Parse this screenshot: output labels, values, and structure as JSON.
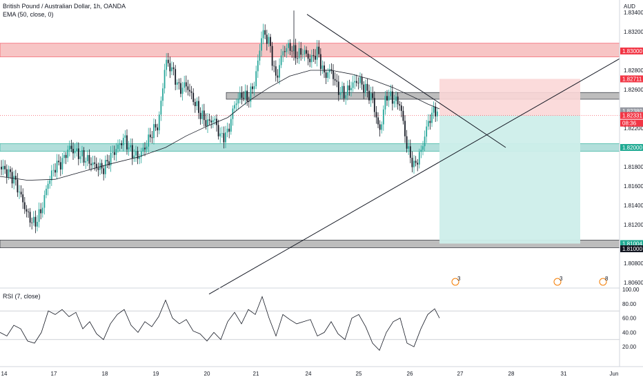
{
  "header": {
    "title": "British Pound / Australian Dollar, 1h, OANDA",
    "ema_label": "EMA (50, close, 0)",
    "rsi_label": "RSI (7, close)"
  },
  "axis": {
    "currency": "AUD",
    "price_ticks": [
      "1.83400",
      "1.83200",
      "1.82800",
      "1.82600",
      "1.82200",
      "1.81800",
      "1.81600",
      "1.81400",
      "1.81200",
      "1.80800",
      "1.80600"
    ],
    "rsi_ticks": [
      "100.00",
      "80.00",
      "60.00",
      "40.00",
      "20.00"
    ],
    "date_ticks": [
      "14",
      "17",
      "18",
      "19",
      "20",
      "21",
      "24",
      "25",
      "26",
      "27",
      "28",
      "31",
      "Jun"
    ]
  },
  "price_badges": [
    {
      "text": "1.83000",
      "color": "#f23645",
      "text_color": "#ffffff"
    },
    {
      "text": "1.82711",
      "color": "#f23645",
      "text_color": "#ffffff"
    },
    {
      "text": "1.82380",
      "color": "#9598a1",
      "text_color": "#ffffff"
    },
    {
      "text": "1.82331",
      "color": "#f23645",
      "text_color": "#ffffff"
    },
    {
      "text": "08:36",
      "color": "#f23645",
      "text_color": "#ffffff"
    },
    {
      "text": "1.82000",
      "color": "#22ab94",
      "text_color": "#ffffff"
    },
    {
      "text": "1.81004",
      "color": "#22ab94",
      "text_color": "#ffffff"
    },
    {
      "text": "1.81000",
      "color": "#131722",
      "text_color": "#ffffff"
    }
  ],
  "event_markers": [
    {
      "label": "3"
    },
    {
      "label": "3"
    },
    {
      "label": "8"
    }
  ],
  "colors": {
    "up_candle": "#26a69a",
    "down_candle": "#131722",
    "resistance_zone": "#f7c5c5",
    "support_zone": "#b2dfdb",
    "grey_zone": "#bdbdbd",
    "stop_zone": "#fbd7d7",
    "target_zone": "#cdeeea",
    "rsi_line": "#131722"
  },
  "chart_data": {
    "type": "candlestick",
    "symbol": "GBPAUD",
    "timeframe": "1h",
    "y_range": [
      1.8048,
      1.835
    ],
    "rsi_range": [
      0,
      100
    ],
    "horizontal_levels": [
      1.83,
      1.8254,
      1.82,
      1.81
    ],
    "position": {
      "type": "short",
      "entry": 1.82331,
      "stop": 1.82711,
      "target": 1.81004
    },
    "ema_path": [
      [
        0,
        1.817
      ],
      [
        40,
        1.8166
      ],
      [
        80,
        1.8167
      ],
      [
        120,
        1.8175
      ],
      [
        160,
        1.8183
      ],
      [
        200,
        1.819
      ],
      [
        240,
        1.82
      ],
      [
        270,
        1.8212
      ],
      [
        300,
        1.8222
      ],
      [
        330,
        1.8231
      ],
      [
        360,
        1.8248
      ],
      [
        390,
        1.8262
      ],
      [
        420,
        1.8274
      ],
      [
        450,
        1.828
      ],
      [
        480,
        1.828
      ],
      [
        510,
        1.8276
      ],
      [
        540,
        1.827
      ],
      [
        570,
        1.8262
      ],
      [
        600,
        1.8252
      ],
      [
        620,
        1.8245
      ],
      [
        637,
        1.824
      ]
    ],
    "close_path": [
      [
        0,
        1.818
      ],
      [
        10,
        1.8175
      ],
      [
        20,
        1.8168
      ],
      [
        30,
        1.815
      ],
      [
        40,
        1.813
      ],
      [
        50,
        1.812
      ],
      [
        60,
        1.8135
      ],
      [
        70,
        1.8165
      ],
      [
        80,
        1.818
      ],
      [
        90,
        1.8185
      ],
      [
        100,
        1.82
      ],
      [
        110,
        1.8195
      ],
      [
        120,
        1.819
      ],
      [
        130,
        1.8185
      ],
      [
        140,
        1.818
      ],
      [
        150,
        1.8178
      ],
      [
        160,
        1.819
      ],
      [
        170,
        1.82
      ],
      [
        180,
        1.821
      ],
      [
        190,
        1.8195
      ],
      [
        200,
        1.819
      ],
      [
        210,
        1.82
      ],
      [
        220,
        1.8215
      ],
      [
        230,
        1.8225
      ],
      [
        240,
        1.829
      ],
      [
        250,
        1.828
      ],
      [
        260,
        1.826
      ],
      [
        270,
        1.8265
      ],
      [
        280,
        1.825
      ],
      [
        290,
        1.8235
      ],
      [
        300,
        1.8225
      ],
      [
        310,
        1.823
      ],
      [
        320,
        1.821
      ],
      [
        330,
        1.8215
      ],
      [
        340,
        1.8245
      ],
      [
        350,
        1.8255
      ],
      [
        360,
        1.825
      ],
      [
        370,
        1.827
      ],
      [
        380,
        1.832
      ],
      [
        390,
        1.831
      ],
      [
        400,
        1.827
      ],
      [
        410,
        1.83
      ],
      [
        420,
        1.8305
      ],
      [
        430,
        1.8295
      ],
      [
        440,
        1.83
      ],
      [
        450,
        1.829
      ],
      [
        460,
        1.83
      ],
      [
        470,
        1.8275
      ],
      [
        480,
        1.828
      ],
      [
        490,
        1.826
      ],
      [
        500,
        1.8255
      ],
      [
        510,
        1.8265
      ],
      [
        520,
        1.827
      ],
      [
        530,
        1.826
      ],
      [
        540,
        1.825
      ],
      [
        550,
        1.8215
      ],
      [
        560,
        1.8255
      ],
      [
        570,
        1.825
      ],
      [
        580,
        1.8245
      ],
      [
        590,
        1.82
      ],
      [
        600,
        1.818
      ],
      [
        610,
        1.8195
      ],
      [
        620,
        1.8225
      ],
      [
        630,
        1.824
      ],
      [
        637,
        1.8233
      ]
    ],
    "rsi_path": [
      [
        0,
        40
      ],
      [
        10,
        35
      ],
      [
        20,
        50
      ],
      [
        30,
        45
      ],
      [
        40,
        28
      ],
      [
        50,
        25
      ],
      [
        60,
        40
      ],
      [
        70,
        70
      ],
      [
        80,
        65
      ],
      [
        90,
        72
      ],
      [
        100,
        62
      ],
      [
        110,
        68
      ],
      [
        120,
        45
      ],
      [
        130,
        55
      ],
      [
        140,
        38
      ],
      [
        150,
        30
      ],
      [
        160,
        52
      ],
      [
        170,
        65
      ],
      [
        180,
        72
      ],
      [
        190,
        50
      ],
      [
        200,
        40
      ],
      [
        210,
        55
      ],
      [
        220,
        48
      ],
      [
        230,
        62
      ],
      [
        240,
        85
      ],
      [
        250,
        60
      ],
      [
        260,
        52
      ],
      [
        270,
        58
      ],
      [
        280,
        42
      ],
      [
        290,
        38
      ],
      [
        300,
        28
      ],
      [
        310,
        40
      ],
      [
        320,
        30
      ],
      [
        330,
        55
      ],
      [
        340,
        68
      ],
      [
        350,
        52
      ],
      [
        360,
        72
      ],
      [
        370,
        65
      ],
      [
        380,
        90
      ],
      [
        390,
        60
      ],
      [
        400,
        35
      ],
      [
        410,
        65
      ],
      [
        420,
        58
      ],
      [
        430,
        52
      ],
      [
        440,
        55
      ],
      [
        450,
        58
      ],
      [
        460,
        35
      ],
      [
        470,
        40
      ],
      [
        480,
        55
      ],
      [
        490,
        38
      ],
      [
        500,
        30
      ],
      [
        510,
        60
      ],
      [
        520,
        65
      ],
      [
        530,
        48
      ],
      [
        540,
        25
      ],
      [
        550,
        15
      ],
      [
        560,
        40
      ],
      [
        570,
        55
      ],
      [
        580,
        60
      ],
      [
        590,
        25
      ],
      [
        600,
        20
      ],
      [
        610,
        45
      ],
      [
        620,
        65
      ],
      [
        630,
        73
      ],
      [
        637,
        60
      ]
    ],
    "trendlines": [
      {
        "name": "descending",
        "from": [
          445,
          1.8338
        ],
        "to": [
          733,
          1.82
        ]
      },
      {
        "name": "ascending",
        "from": [
          303,
          1.8048
        ],
        "to": [
          898,
          1.8292
        ]
      }
    ]
  }
}
